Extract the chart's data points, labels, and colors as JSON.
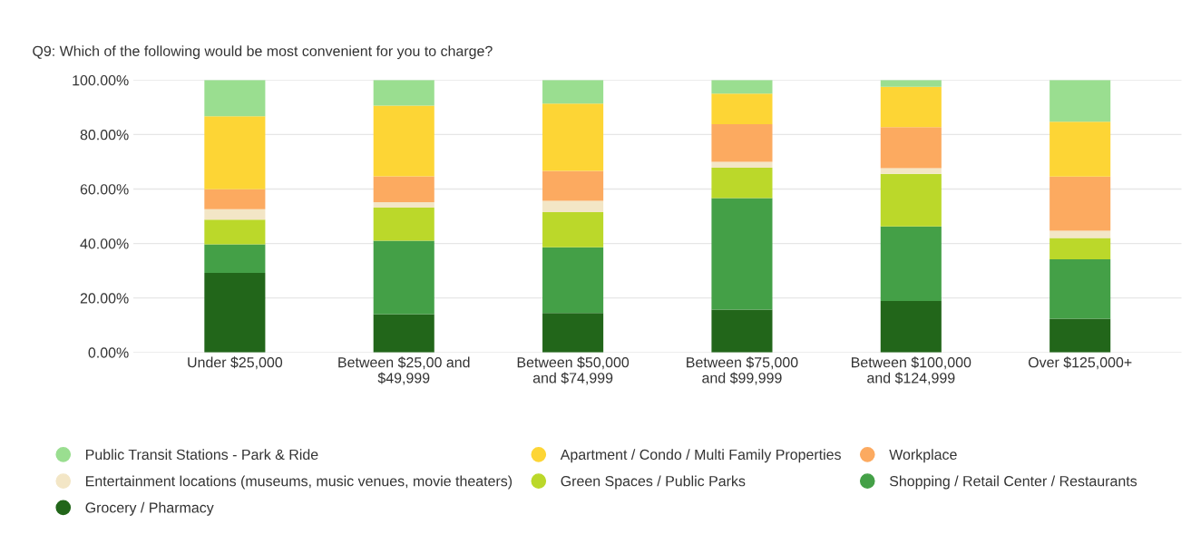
{
  "chart_data": {
    "type": "bar",
    "stacked": true,
    "title": "Q9: Which of the following would be most convenient for you to charge?",
    "categories": [
      "Under $25,000",
      "Between $25,00 and\n$49,999",
      "Between $50,000\nand $74,999",
      "Between $75,000\nand $99,999",
      "Between $100,000\nand $124,999",
      "Over $125,000+"
    ],
    "series": [
      {
        "name": "Grocery / Pharmacy",
        "color": "#22661a",
        "values": [
          29.2,
          14.1,
          14.5,
          15.7,
          18.9,
          12.4
        ]
      },
      {
        "name": "Shopping / Retail Center / Restaurants",
        "color": "#44a047",
        "values": [
          10.5,
          26.9,
          24.1,
          41.0,
          27.4,
          21.8
        ]
      },
      {
        "name": "Green Spaces / Public Parks",
        "color": "#bbd82a",
        "values": [
          9.1,
          12.2,
          12.9,
          11.1,
          19.3,
          7.8
        ]
      },
      {
        "name": "Entertainment locations (museums, music venues, movie theaters)",
        "color": "#f3e6c6",
        "values": [
          3.8,
          2.0,
          4.2,
          2.2,
          2.1,
          2.7
        ]
      },
      {
        "name": "Workplace",
        "color": "#fcaa60",
        "values": [
          7.3,
          9.5,
          11.0,
          13.8,
          15.0,
          19.9
        ]
      },
      {
        "name": "Apartment / Condo / Multi Family Properties",
        "color": "#fdd535",
        "values": [
          26.8,
          25.9,
          24.7,
          11.2,
          14.8,
          20.1
        ]
      },
      {
        "name": "Public Transit Stations - Park & Ride",
        "color": "#9ade90",
        "values": [
          13.3,
          9.4,
          8.6,
          5.0,
          2.5,
          15.3
        ]
      }
    ],
    "ylim": [
      0,
      100
    ],
    "yticks": [
      {
        "value": 0,
        "label": "0.00%"
      },
      {
        "value": 20,
        "label": "20.00%"
      },
      {
        "value": 40,
        "label": "40.00%"
      },
      {
        "value": 60,
        "label": "60.00%"
      },
      {
        "value": 80,
        "label": "80.00%"
      },
      {
        "value": 100,
        "label": "100.00%"
      }
    ],
    "grid": "y",
    "legend": "bottom",
    "marker": "circle"
  }
}
